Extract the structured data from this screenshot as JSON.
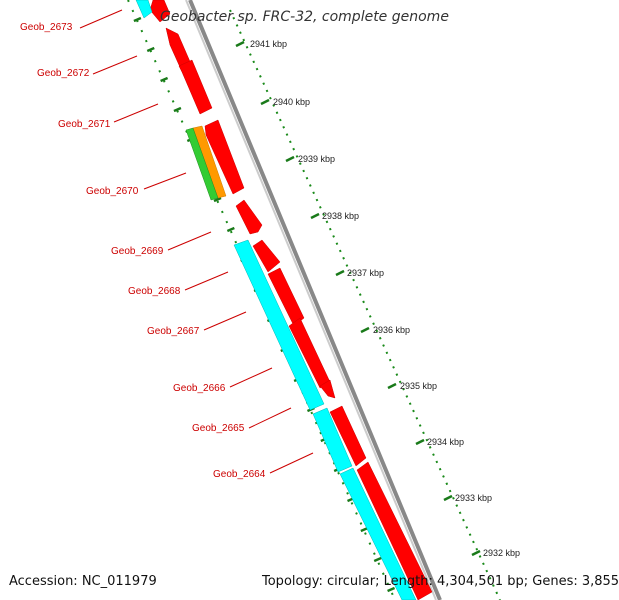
{
  "title": "Geobacter sp. FRC-32, complete genome",
  "footer": {
    "accession": "Accession: NC_011979",
    "summary": "Topology: circular; Length: 4,304,501 bp; Genes: 3,855"
  },
  "colors": {
    "forward_gene": "#ff0000",
    "reverse_gene": "#00ffff",
    "other_orange": "#ff9900",
    "other_green": "#33cc33",
    "tick": "#228b22",
    "backbone": "#888888",
    "label": "#cc0000"
  },
  "scale_labels": [
    "2941 kbp",
    "2940 kbp",
    "2939 kbp",
    "2938 kbp",
    "2937 kbp",
    "2936 kbp",
    "2935 kbp",
    "2934 kbp",
    "2933 kbp",
    "2932 kbp"
  ],
  "gene_labels": [
    "Geob_2673",
    "Geob_2672",
    "Geob_2671",
    "Geob_2670",
    "Geob_2669",
    "Geob_2668",
    "Geob_2667",
    "Geob_2666",
    "Geob_2665",
    "Geob_2664"
  ]
}
